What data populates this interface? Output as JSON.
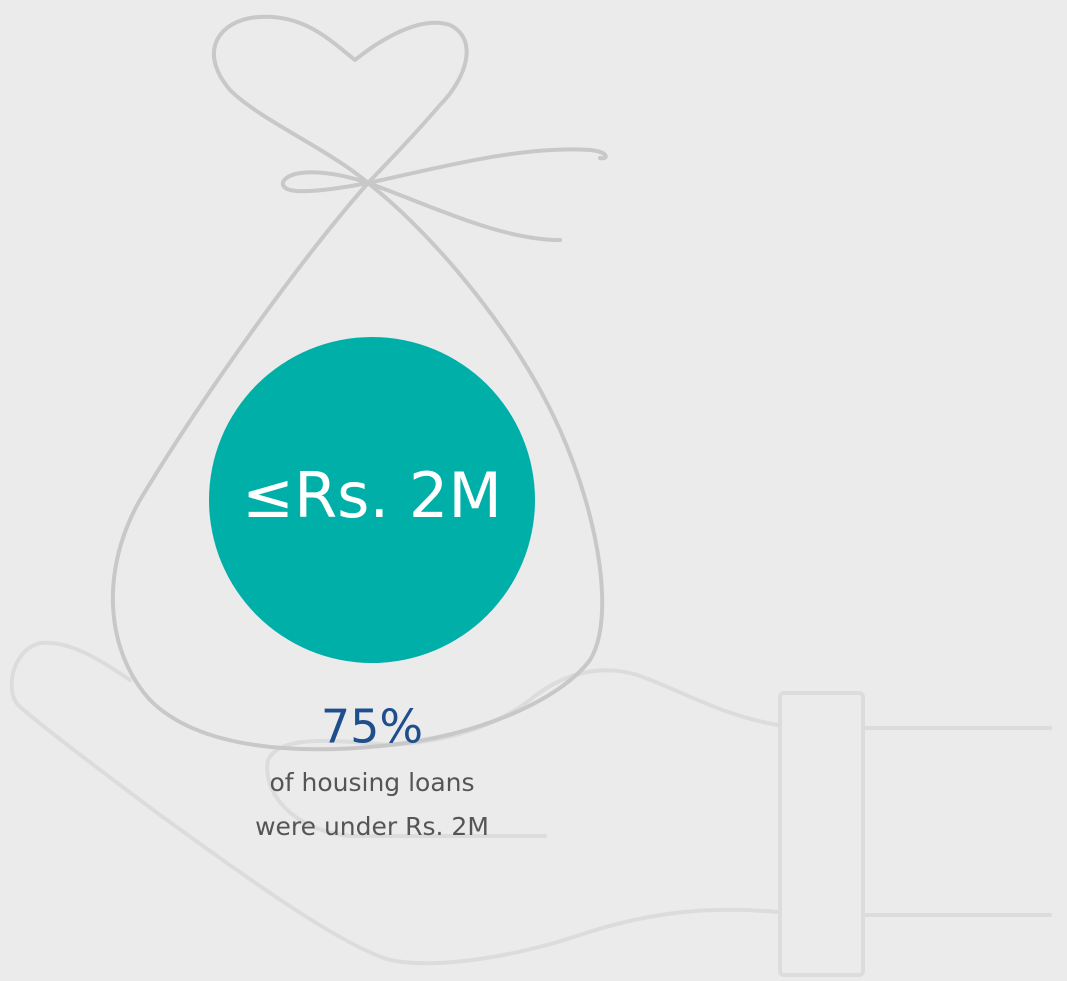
{
  "badge": {
    "label": "≤Rs. 2M"
  },
  "stat": {
    "value": "75%",
    "caption_lines": [
      "of housing loans",
      "were under Rs. 2M"
    ]
  }
}
